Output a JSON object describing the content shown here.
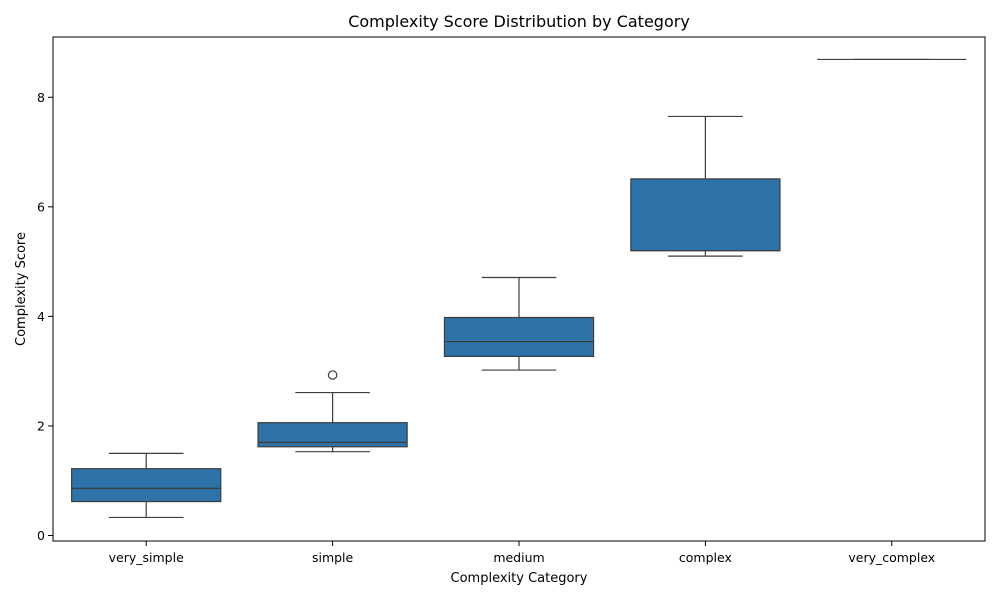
{
  "chart_data": {
    "type": "box",
    "title": "Complexity Score Distribution by Category",
    "xlabel": "Complexity Category",
    "ylabel": "Complexity Score",
    "ylim": [
      -0.1,
      9.1
    ],
    "yticks": [
      0,
      2,
      4,
      6,
      8
    ],
    "grid": false,
    "box_color": "#2d73a9",
    "categories": [
      "very_simple",
      "simple",
      "medium",
      "complex",
      "very_complex"
    ],
    "boxes": [
      {
        "category": "very_simple",
        "whisker_low": 0.33,
        "q1": 0.62,
        "median": 0.86,
        "q3": 1.22,
        "whisker_high": 1.5,
        "outliers": []
      },
      {
        "category": "simple",
        "whisker_low": 1.53,
        "q1": 1.62,
        "median": 1.7,
        "q3": 2.06,
        "whisker_high": 2.61,
        "outliers": [
          2.93
        ]
      },
      {
        "category": "medium",
        "whisker_low": 3.02,
        "q1": 3.27,
        "median": 3.54,
        "q3": 3.98,
        "whisker_high": 4.71,
        "outliers": []
      },
      {
        "category": "complex",
        "whisker_low": 5.1,
        "q1": 5.2,
        "median": 5.2,
        "q3": 6.51,
        "whisker_high": 7.65,
        "outliers": []
      },
      {
        "category": "very_complex",
        "whisker_low": 8.69,
        "q1": 8.69,
        "median": 8.69,
        "q3": 8.69,
        "whisker_high": 8.69,
        "outliers": []
      }
    ]
  }
}
